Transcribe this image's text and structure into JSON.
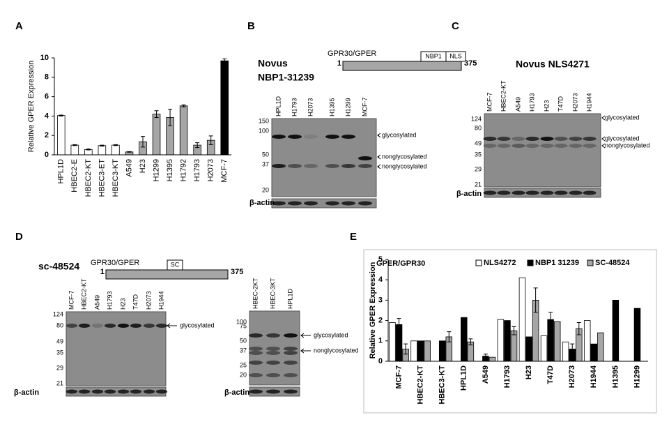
{
  "chart_data": [
    {
      "type": "bar",
      "panel": "A",
      "y_label": "Relative GPER Expression",
      "categories": [
        "HPL1D",
        "HBEC2-E",
        "HBEC2-KT",
        "HBEC3-ET",
        "HBEC3-KT",
        "A549",
        "H23",
        "H1299",
        "H1395",
        "H1792",
        "H1793",
        "H2073",
        "MCF-7"
      ],
      "values": [
        4.05,
        1.0,
        0.55,
        0.95,
        1.0,
        0.3,
        1.35,
        4.2,
        3.85,
        5.05,
        1.0,
        1.5,
        9.7
      ],
      "errors": [
        0.05,
        0.05,
        0.05,
        0.05,
        0.05,
        0.03,
        0.55,
        0.35,
        0.85,
        0.1,
        0.25,
        0.45,
        0.2
      ],
      "colors": [
        "#ffffff",
        "#ffffff",
        "#ffffff",
        "#ffffff",
        "#ffffff",
        "#a6a6a6",
        "#a6a6a6",
        "#a6a6a6",
        "#a6a6a6",
        "#a6a6a6",
        "#a6a6a6",
        "#a6a6a6",
        "#000000"
      ],
      "ylim": [
        0,
        10
      ],
      "yticks": [
        0,
        2,
        4,
        6,
        8,
        10
      ]
    },
    {
      "type": "grouped_bar",
      "panel": "E",
      "title": "GPER/GPR30",
      "y_label": "Relative GPER Expression",
      "legend": "top",
      "categories": [
        "MCF-7",
        "HBEC2-KT",
        "HBEC3-KT",
        "HPL1D",
        "A549",
        "H1793",
        "H23",
        "T47D",
        "H2073",
        "H1944",
        "H1395",
        "H1299"
      ],
      "series": [
        {
          "name": "NLS4272",
          "color": "#ffffff",
          "values": [
            1.9,
            1.0,
            null,
            null,
            null,
            2.05,
            4.1,
            1.25,
            0.95,
            2.0,
            null,
            null
          ],
          "errors": [
            null,
            null,
            null,
            null,
            null,
            null,
            null,
            null,
            null,
            null,
            null,
            null
          ]
        },
        {
          "name": "NBP1 31239",
          "color": "#000000",
          "values": [
            1.8,
            1.0,
            1.0,
            2.15,
            0.25,
            2.0,
            1.2,
            2.05,
            0.6,
            0.85,
            3.0,
            2.6
          ],
          "errors": [
            0.3,
            null,
            null,
            null,
            0.1,
            null,
            null,
            0.35,
            0.25,
            null,
            null,
            null
          ]
        },
        {
          "name": "SC-48524",
          "color": "#a6a6a6",
          "values": [
            0.6,
            1.0,
            1.2,
            0.95,
            0.2,
            1.5,
            3.0,
            1.95,
            1.6,
            1.4,
            null,
            null
          ],
          "errors": [
            0.25,
            null,
            0.25,
            0.15,
            null,
            0.2,
            0.6,
            null,
            0.3,
            null,
            null,
            null
          ]
        }
      ],
      "ylim": [
        0,
        5
      ],
      "yticks": [
        0,
        1,
        2,
        3,
        4,
        5
      ]
    }
  ],
  "blots": [
    {
      "panel": "B",
      "antibody": [
        "Novus",
        "NBP1-31239"
      ],
      "construct": {
        "name": "GPR30/GPER",
        "start": 1,
        "end": 375,
        "domains": [
          "NBP1",
          "NLS"
        ]
      },
      "lanes": [
        "HPL1D",
        "H1793",
        "H2073",
        "H1395",
        "H1299",
        "MCF-7"
      ],
      "markers": [
        150,
        100,
        50,
        37,
        20
      ],
      "bands": [
        "glycosylated",
        "nonglycosylated",
        "nonglycosylated"
      ],
      "loading": "β-actin"
    },
    {
      "panel": "C",
      "antibody": [
        "Novus NLS4271"
      ],
      "lanes": [
        "MCF-7",
        "HBEC2-KT",
        "A549",
        "H1793",
        "H23",
        "T47D",
        "H2073",
        "H1944"
      ],
      "markers": [
        124,
        80,
        49,
        35,
        29,
        21
      ],
      "bands": [
        "glycosylated",
        "glycosylated",
        "nonglycosylated"
      ],
      "loading": "β-actin"
    },
    {
      "panel": "D",
      "antibody": [
        "sc-48524"
      ],
      "construct": {
        "name": "GPR30/GPER",
        "start": 1,
        "end": 375,
        "domains": [
          "SC"
        ]
      },
      "lanes": [
        "MCF-7",
        "HBEC2-KT",
        "A549",
        "H1793",
        "H23",
        "T47D",
        "H2073",
        "H1944"
      ],
      "markers": [
        124,
        80,
        49,
        35,
        29,
        21
      ],
      "bands": [
        "glycosylated"
      ],
      "loading": "β-actin"
    },
    {
      "lanes": [
        "HBEC-2KT",
        "HBEC-3KT",
        "HPL1D"
      ],
      "markers": [
        100,
        75,
        50,
        37,
        25,
        20
      ],
      "bands": [
        "glycosylated",
        "nonglycosylated"
      ],
      "loading": "β-actin"
    }
  ]
}
